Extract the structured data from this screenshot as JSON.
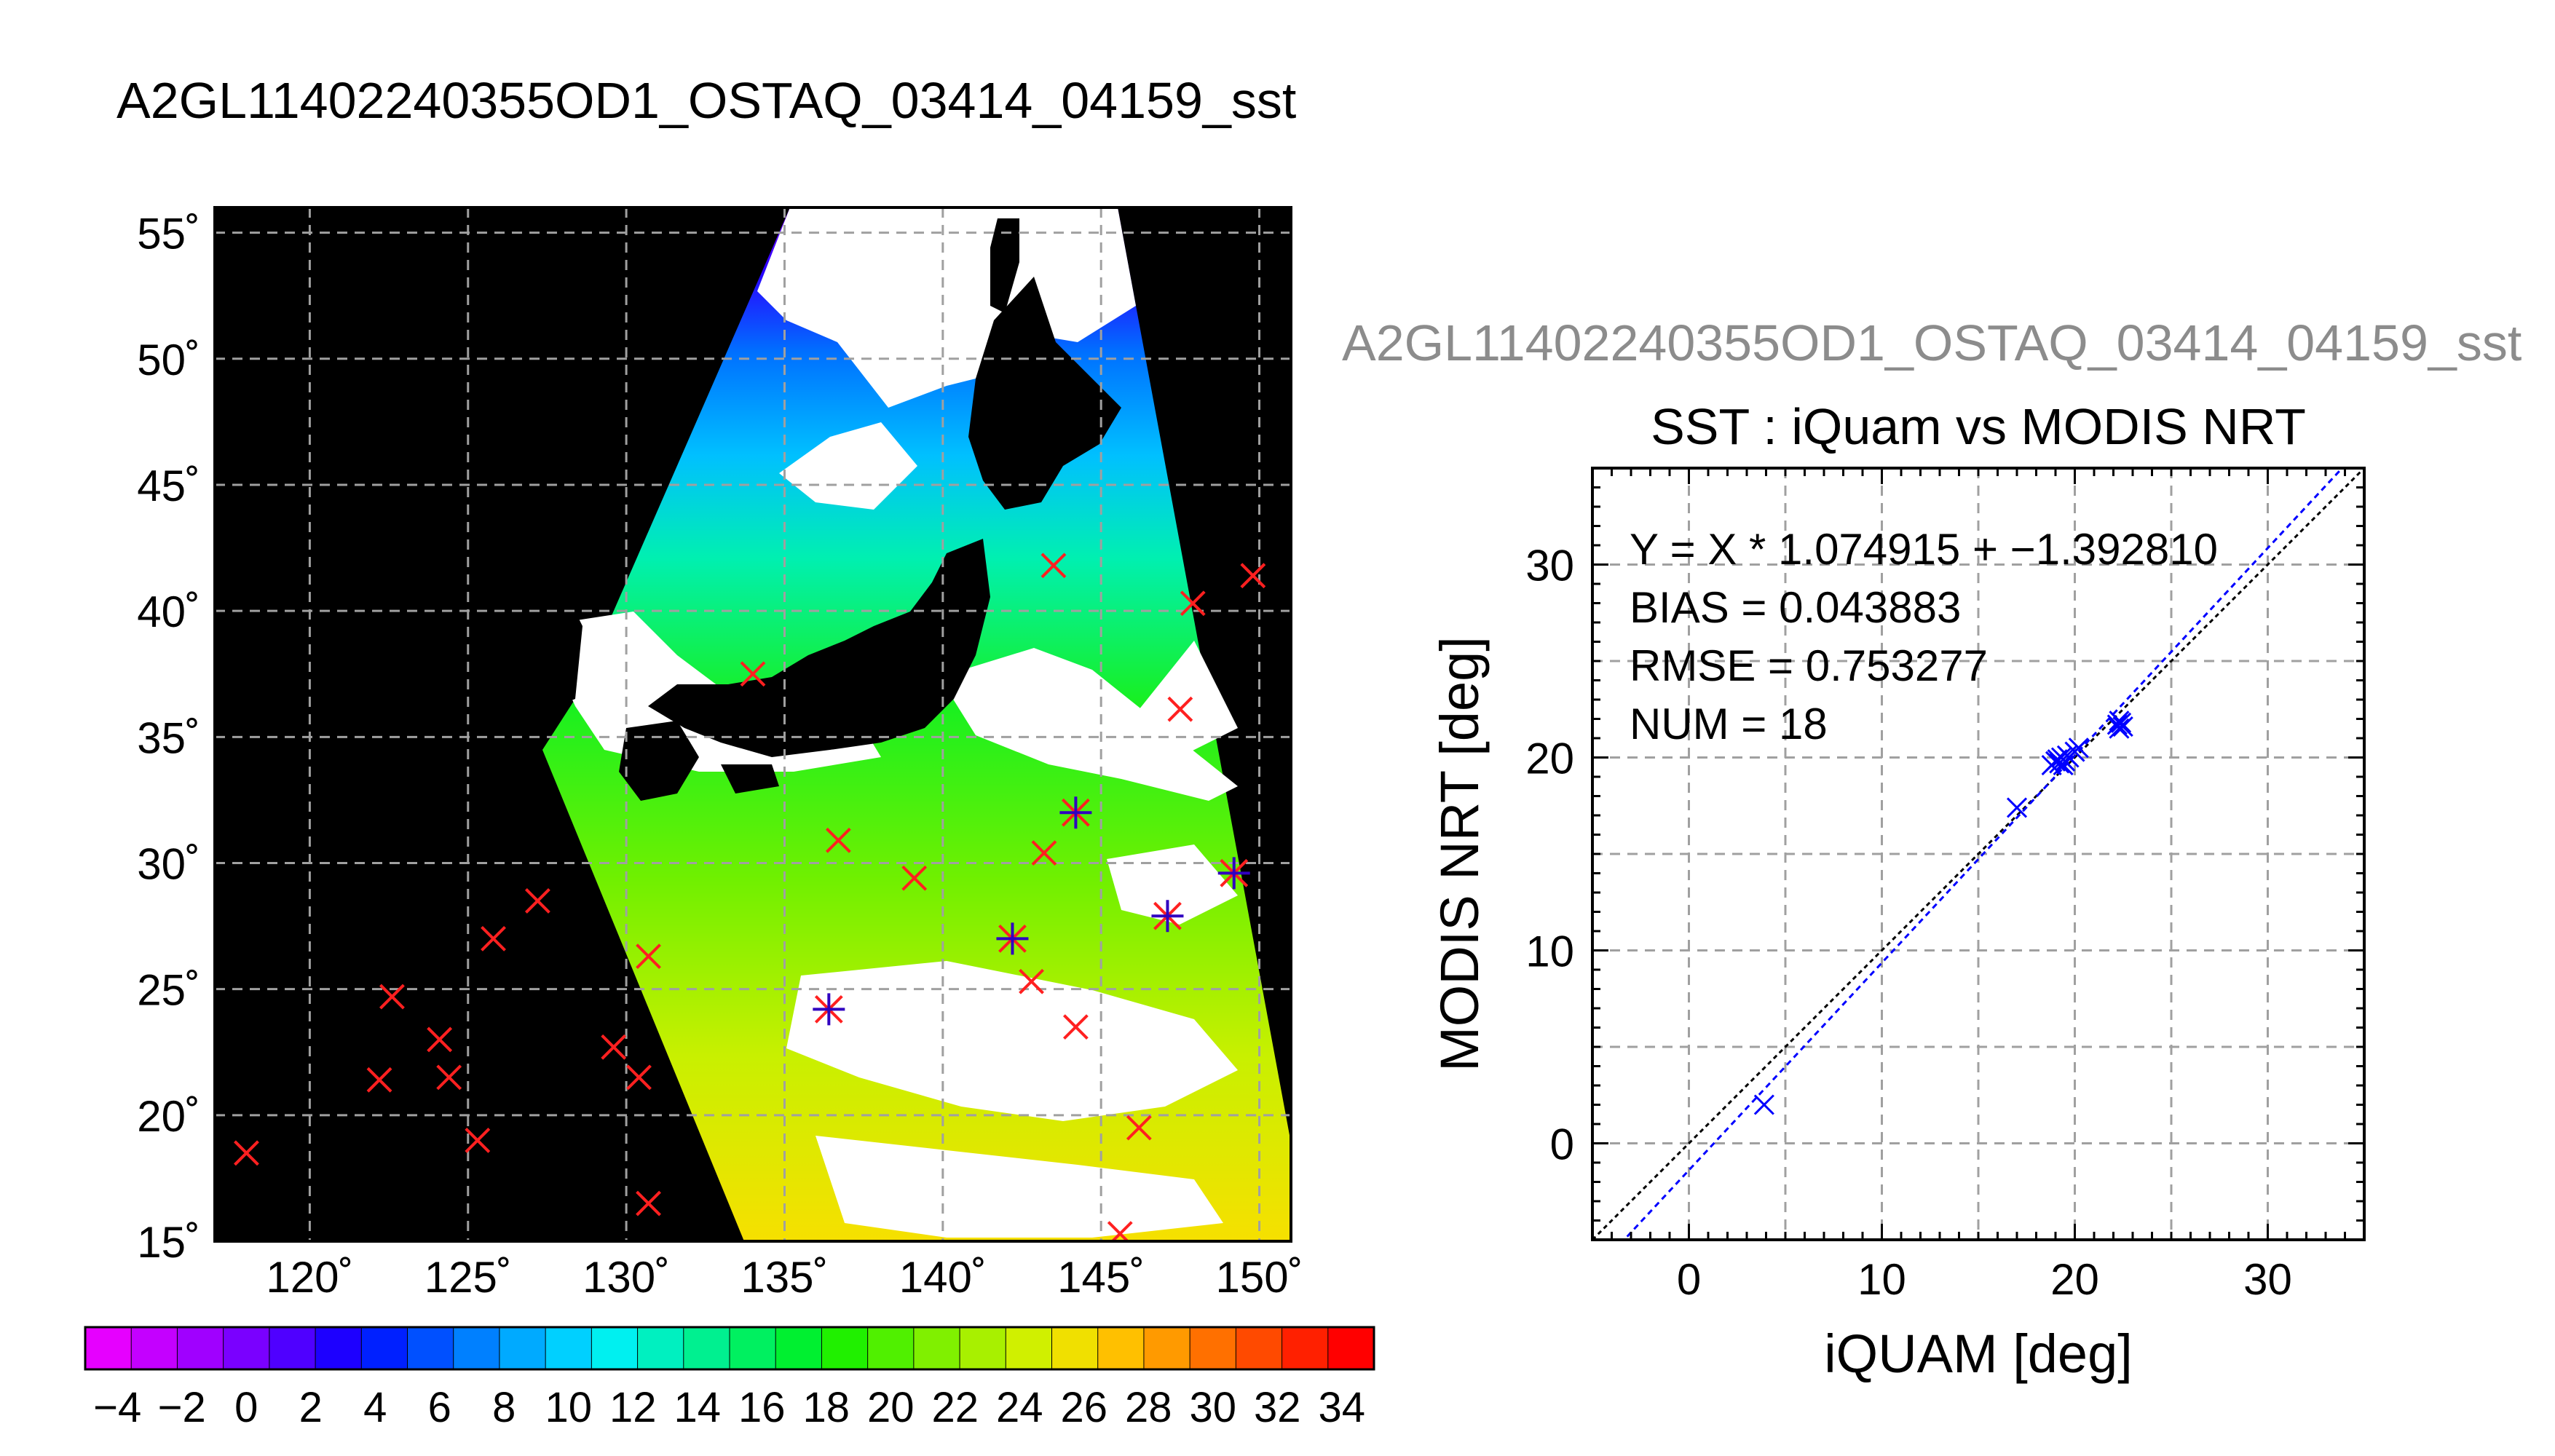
{
  "chart_data": [
    {
      "type": "map",
      "title": "A2GL11402240355OD1_OSTAQ_03414_04159_sst",
      "lon_range": [
        117,
        151
      ],
      "lat_range": [
        15,
        56
      ],
      "lon_ticks": [
        120,
        125,
        130,
        135,
        140,
        145,
        150
      ],
      "lat_ticks": [
        15,
        20,
        25,
        30,
        35,
        40,
        45,
        50,
        55
      ],
      "lon_tick_labels": [
        "120˚",
        "125˚",
        "130˚",
        "135˚",
        "140˚",
        "145˚",
        "150˚"
      ],
      "lat_tick_labels": [
        "15˚",
        "20˚",
        "25˚",
        "30˚",
        "35˚",
        "40˚",
        "45˚",
        "50˚",
        "55˚"
      ],
      "grid": true,
      "colorbar": {
        "min": -5,
        "max": 35,
        "tick_labels": [
          "−4",
          "−2",
          "0",
          "2",
          "4",
          "6",
          "8",
          "10",
          "12",
          "14",
          "16",
          "18",
          "20",
          "22",
          "24",
          "26",
          "28",
          "30",
          "32",
          "34"
        ],
        "colors": [
          "#e600ff",
          "#c400ff",
          "#a000ff",
          "#7a00ff",
          "#4f00ff",
          "#1d00ff",
          "#0020ff",
          "#0050ff",
          "#0080ff",
          "#00aaff",
          "#00d0ff",
          "#00f0f0",
          "#00f0c0",
          "#00f090",
          "#00f060",
          "#00f030",
          "#20f000",
          "#50f000",
          "#80f000",
          "#a8f000",
          "#d0f000",
          "#f0e000",
          "#ffc000",
          "#ff9a00",
          "#ff7000",
          "#ff4a00",
          "#ff2000",
          "#ff0000"
        ]
      },
      "markers": {
        "red_x": [
          [
            118,
            18.5
          ],
          [
            122.2,
            21.4
          ],
          [
            122.6,
            24.7
          ],
          [
            124.1,
            23
          ],
          [
            124.4,
            21.5
          ],
          [
            125.3,
            19
          ],
          [
            125.8,
            27
          ],
          [
            127.2,
            28.5
          ],
          [
            129.6,
            22.7
          ],
          [
            130.4,
            21.5
          ],
          [
            130.7,
            26.3
          ],
          [
            130.7,
            16.5
          ],
          [
            134,
            37.5
          ],
          [
            136.7,
            30.9
          ],
          [
            139.1,
            29.4
          ],
          [
            142.8,
            25.3
          ],
          [
            143.2,
            30.4
          ],
          [
            143.5,
            41.8
          ],
          [
            144.2,
            23.5
          ],
          [
            145.6,
            15.3
          ],
          [
            146.2,
            19.5
          ],
          [
            147.5,
            36.1
          ],
          [
            147.9,
            40.3
          ],
          [
            149.8,
            41.4
          ]
        ],
        "star": [
          [
            136.4,
            24.2
          ],
          [
            142.2,
            27
          ],
          [
            144.2,
            32
          ],
          [
            147.1,
            27.9
          ],
          [
            149.2,
            29.6
          ]
        ]
      }
    },
    {
      "type": "scatter",
      "subtitle": "A2GL11402240355OD1_OSTAQ_03414_04159_sst",
      "title": "SST : iQuam vs MODIS NRT",
      "xlabel": "iQUAM [deg]",
      "ylabel": "MODIS NRT [deg]",
      "xlim": [
        -5,
        35
      ],
      "ylim": [
        -5,
        35
      ],
      "xticks": [
        0,
        10,
        20,
        30
      ],
      "yticks": [
        0,
        10,
        20,
        30
      ],
      "grid": true,
      "stats": [
        "Y = X * 1.074915 + −1.392810",
        "BIAS = 0.043883",
        "RMSE = 0.753277",
        "NUM = 18"
      ],
      "fit": {
        "slope": 1.074915,
        "intercept": -1.39281,
        "color": "#0000ff"
      },
      "identity_line_color": "#000000",
      "point_color": "#0000ff",
      "points": [
        [
          3.9,
          2
        ],
        [
          17,
          17.4
        ],
        [
          18.8,
          19.6
        ],
        [
          19,
          19.8
        ],
        [
          19.1,
          19.9
        ],
        [
          19.2,
          19.7
        ],
        [
          19.3,
          20
        ],
        [
          19.4,
          19.6
        ],
        [
          19.5,
          19.8
        ],
        [
          19.6,
          20.1
        ],
        [
          19.7,
          20
        ],
        [
          20,
          20.3
        ],
        [
          20.2,
          20.5
        ],
        [
          22.2,
          21.7
        ],
        [
          22.3,
          21.9
        ],
        [
          22.3,
          21.5
        ],
        [
          22.4,
          21.8
        ],
        [
          22.5,
          21.6
        ]
      ]
    }
  ]
}
